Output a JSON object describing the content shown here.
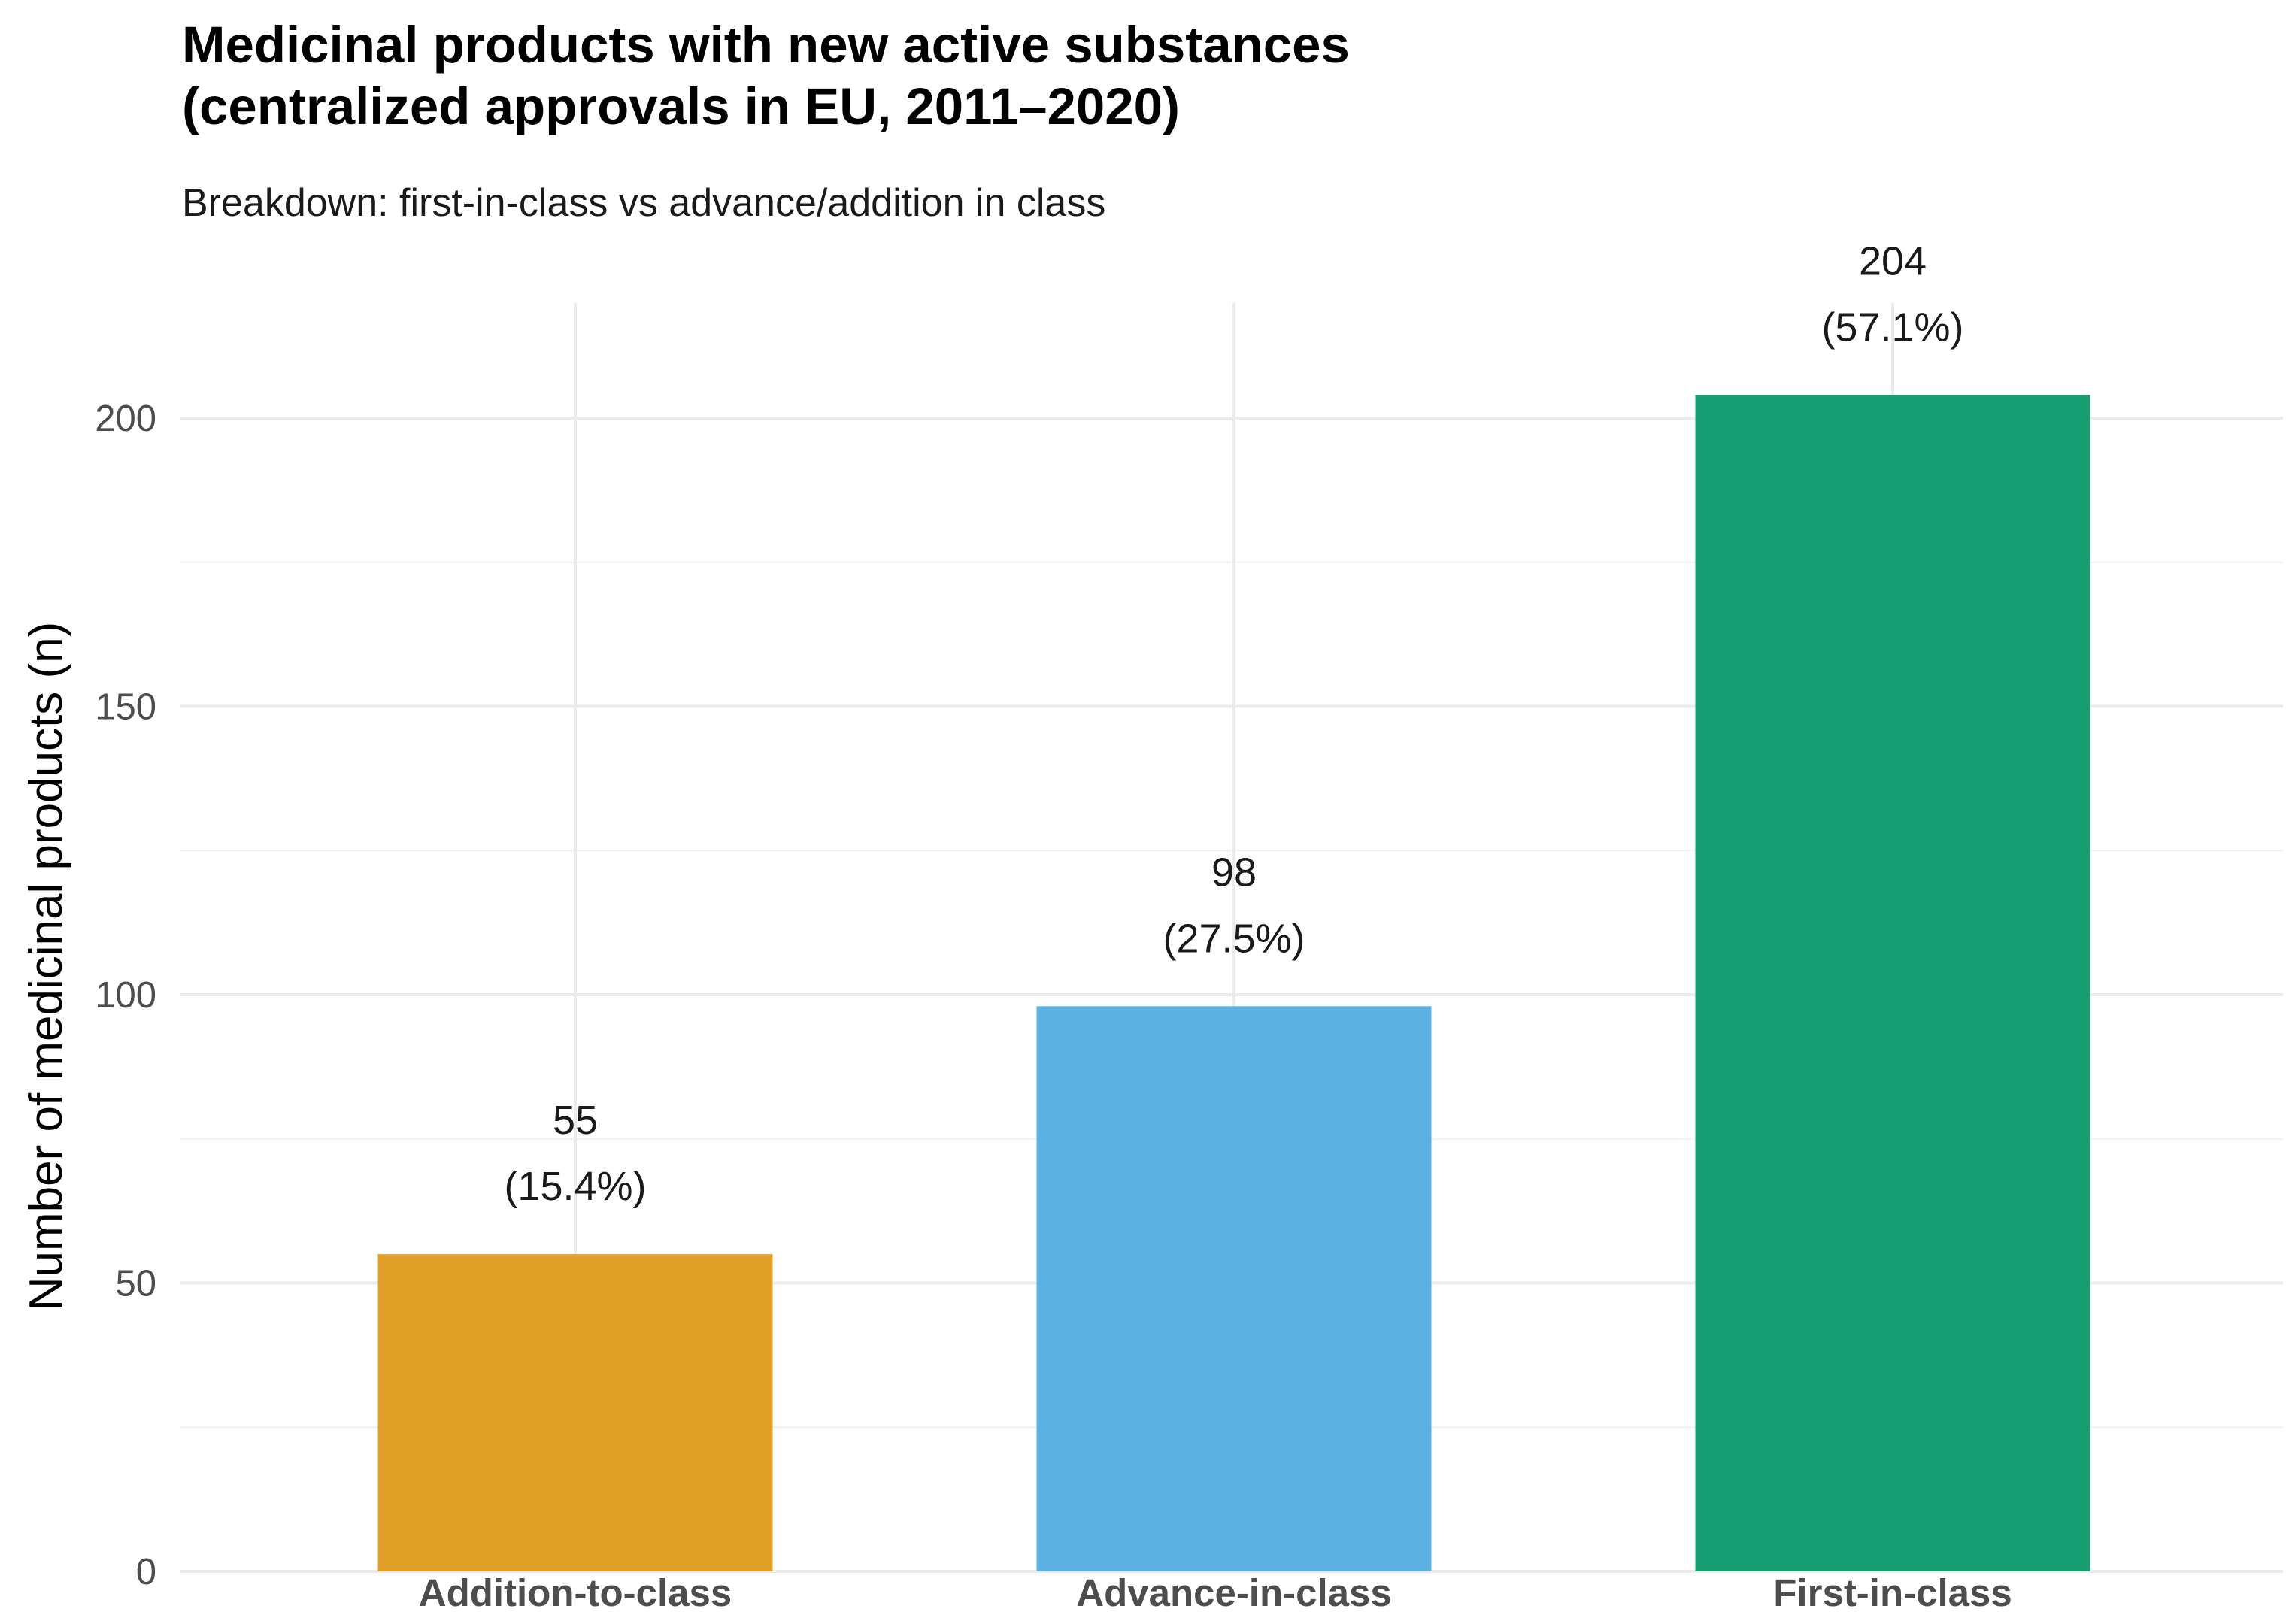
{
  "chart_data": {
    "type": "bar",
    "title": "Medicinal products with new active substances",
    "title_line2": "(centralized approvals in EU, 2011–2020)",
    "subtitle": "Breakdown: first-in-class vs advance/addition in class",
    "xlabel": "",
    "ylabel": "Number of medicinal products (n)",
    "categories": [
      "Addition-to-class",
      "Advance-in-class",
      "First-in-class"
    ],
    "values": [
      55,
      98,
      204
    ],
    "data_labels": [
      {
        "count": "55",
        "percent": "(15.4%)"
      },
      {
        "count": "98",
        "percent": "(27.5%)"
      },
      {
        "count": "204",
        "percent": "(57.1%)"
      }
    ],
    "colors": [
      "#E1A027",
      "#5AB1E2",
      "#169E72"
    ],
    "ylim": [
      0,
      220
    ],
    "y_ticks": [
      0,
      50,
      100,
      150,
      200
    ],
    "y_tick_labels": [
      "0",
      "50",
      "100",
      "150",
      "200"
    ],
    "y_minor_ticks": [
      25,
      75,
      125,
      175
    ],
    "grid": true,
    "legend": "none"
  }
}
